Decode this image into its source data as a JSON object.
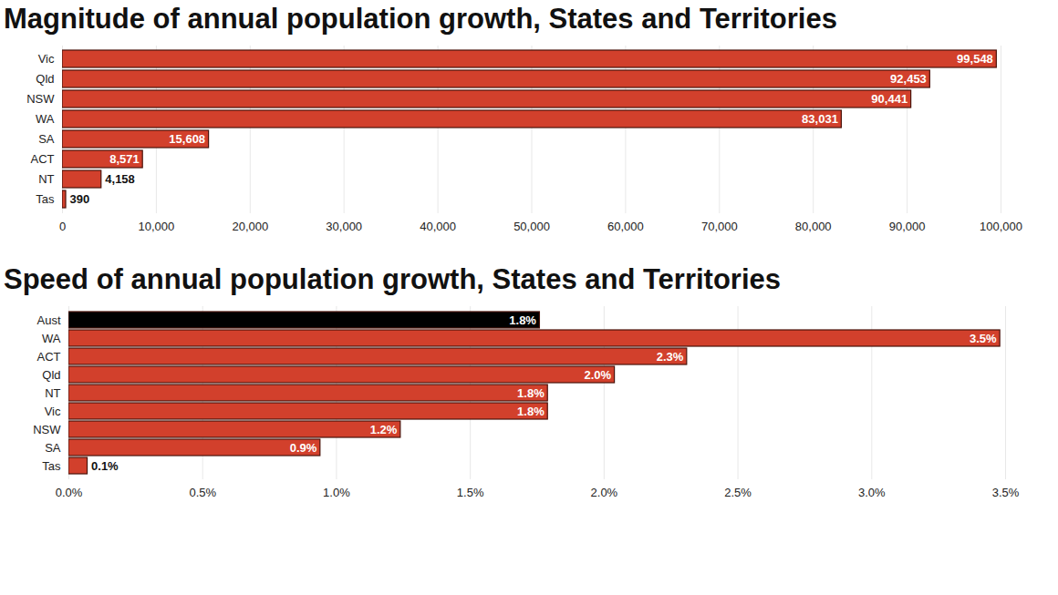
{
  "chart_data": [
    {
      "type": "bar",
      "orientation": "horizontal",
      "title": "Magnitude of annual population growth, States and Territories",
      "categories": [
        "Vic",
        "Qld",
        "NSW",
        "WA",
        "SA",
        "ACT",
        "NT",
        "Tas"
      ],
      "values": [
        99548,
        92453,
        90441,
        83031,
        15608,
        8571,
        4158,
        390
      ],
      "value_labels": [
        "99,548",
        "92,453",
        "90,441",
        "83,031",
        "15,608",
        "8,571",
        "4,158",
        "390"
      ],
      "data_labels": true,
      "color": "#d2402c",
      "xlim": [
        0,
        100000
      ],
      "xticks": [
        0,
        {
          "value": 10000,
          "label": "10,000"
        },
        {
          "value": 20000,
          "label": "20,000"
        },
        {
          "value": 30000,
          "label": "30,000"
        },
        {
          "value": 40000,
          "label": "40,000"
        },
        {
          "value": 50000,
          "label": "50,000"
        },
        {
          "value": 60000,
          "label": "60,000"
        },
        {
          "value": 70000,
          "label": "70,000"
        },
        {
          "value": 80000,
          "label": "80,000"
        },
        {
          "value": 90000,
          "label": "90,000"
        },
        {
          "value": 100000,
          "label": "100,000"
        }
      ],
      "grid": true
    },
    {
      "type": "bar",
      "orientation": "horizontal",
      "title": "Speed of annual population growth, States and Territories",
      "categories": [
        "Aust",
        "WA",
        "ACT",
        "Qld",
        "NT",
        "Vic",
        "NSW",
        "SA",
        "Tas"
      ],
      "values": [
        1.76,
        3.48,
        2.31,
        2.04,
        1.79,
        1.79,
        1.24,
        0.94,
        0.07
      ],
      "value_labels": [
        "1.8%",
        "3.5%",
        "2.3%",
        "2.0%",
        "1.8%",
        "1.8%",
        "1.2%",
        "0.9%",
        "0.1%"
      ],
      "data_labels": true,
      "colors": [
        "#000000",
        "#d2402c",
        "#d2402c",
        "#d2402c",
        "#d2402c",
        "#d2402c",
        "#d2402c",
        "#d2402c",
        "#d2402c"
      ],
      "xlim": [
        0,
        3.5
      ],
      "xticks": [
        {
          "value": 0,
          "label": "0.0%"
        },
        {
          "value": 0.5,
          "label": "0.5%"
        },
        {
          "value": 1,
          "label": "1.0%"
        },
        {
          "value": 1.5,
          "label": "1.5%"
        },
        {
          "value": 2,
          "label": "2.0%"
        },
        {
          "value": 2.5,
          "label": "2.5%"
        },
        {
          "value": 3,
          "label": "3.0%"
        },
        {
          "value": 3.5,
          "label": "3.5%"
        }
      ],
      "grid": true
    }
  ]
}
